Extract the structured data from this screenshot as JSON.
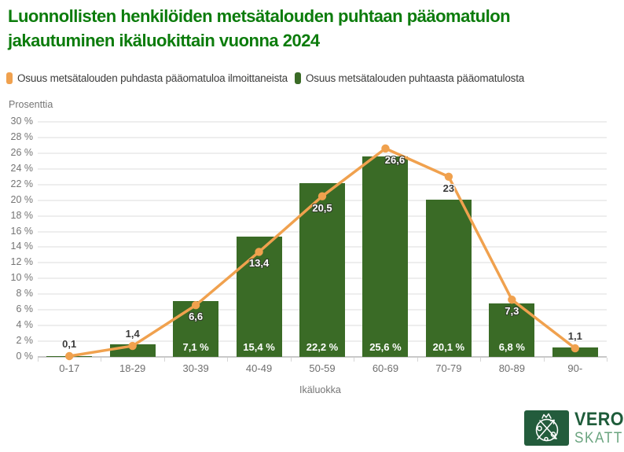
{
  "title": "Luonnollisten henkilöiden metsätalouden puhtaan pääomatulon jakautuminen ikäluokittain vuonna 2024",
  "legend": {
    "items": [
      {
        "label": "Osuus metsätalouden puhdasta pääomatuloa ilmoittaneista",
        "color": "#F0A14E"
      },
      {
        "label": "Osuus metsätalouden puhtaasta pääomatulosta",
        "color": "#3A6B26"
      }
    ]
  },
  "chart_data": {
    "type": "combo",
    "title": "Luonnollisten henkilöiden metsätalouden puhtaan pääomatulon jakautuminen ikäluokittain vuonna 2024",
    "categories": [
      "0-17",
      "18-29",
      "30-39",
      "40-49",
      "50-59",
      "60-69",
      "70-79",
      "80-89",
      "90-"
    ],
    "series": [
      {
        "name": "Osuus metsätalouden puhdasta pääomatuloa ilmoittaneista",
        "type": "line",
        "color": "#F0A14E",
        "values": [
          0.1,
          1.4,
          6.6,
          13.4,
          20.5,
          26.6,
          23,
          7.3,
          1.1
        ],
        "labels": [
          "0,1",
          "1,4",
          "6,6",
          "13,4",
          "20,5",
          "26,6",
          "23",
          "7,3",
          "1,1"
        ],
        "label_placement": [
          "above",
          "above",
          "below",
          "below",
          "below",
          "below-right",
          "below",
          "below",
          "above"
        ],
        "label_style": [
          "dark",
          "dark",
          "light",
          "light",
          "light",
          "light",
          "dark",
          "light",
          "dark"
        ]
      },
      {
        "name": "Osuus metsätalouden puhtaasta pääomatulosta",
        "type": "bar",
        "color": "#3A6B26",
        "values": [
          0.1,
          1.6,
          7.1,
          15.4,
          22.2,
          25.6,
          20.1,
          6.8,
          1.2
        ],
        "labels": [
          "",
          "",
          "7,1 %",
          "15,4 %",
          "22,2 %",
          "25,6 %",
          "20,1 %",
          "6,8 %",
          ""
        ]
      }
    ],
    "xlabel": "Ikäluokka",
    "ylabel": "Prosenttia",
    "ylim": [
      0,
      30
    ],
    "ytick_step": 2,
    "ytick_labels": [
      "0 %",
      "2 %",
      "4 %",
      "6 %",
      "8 %",
      "10 %",
      "12 %",
      "14 %",
      "16 %",
      "18 %",
      "20 %",
      "22 %",
      "24 %",
      "26 %",
      "28 %",
      "30 %"
    ],
    "grid": true,
    "legend_position": "top"
  },
  "colors": {
    "title_green": "#0C7C0C",
    "grid": "#EEEEEE",
    "axis_line": "#C9C9C9",
    "tick_text": "#757575",
    "legend_text": "#3C3C3B"
  },
  "logo": {
    "line1": "VERO",
    "line2": "SKATT",
    "square_color": "#235C3C",
    "text_color_primary": "#1E5C3A",
    "text_color_secondary": "#6AA47F"
  }
}
